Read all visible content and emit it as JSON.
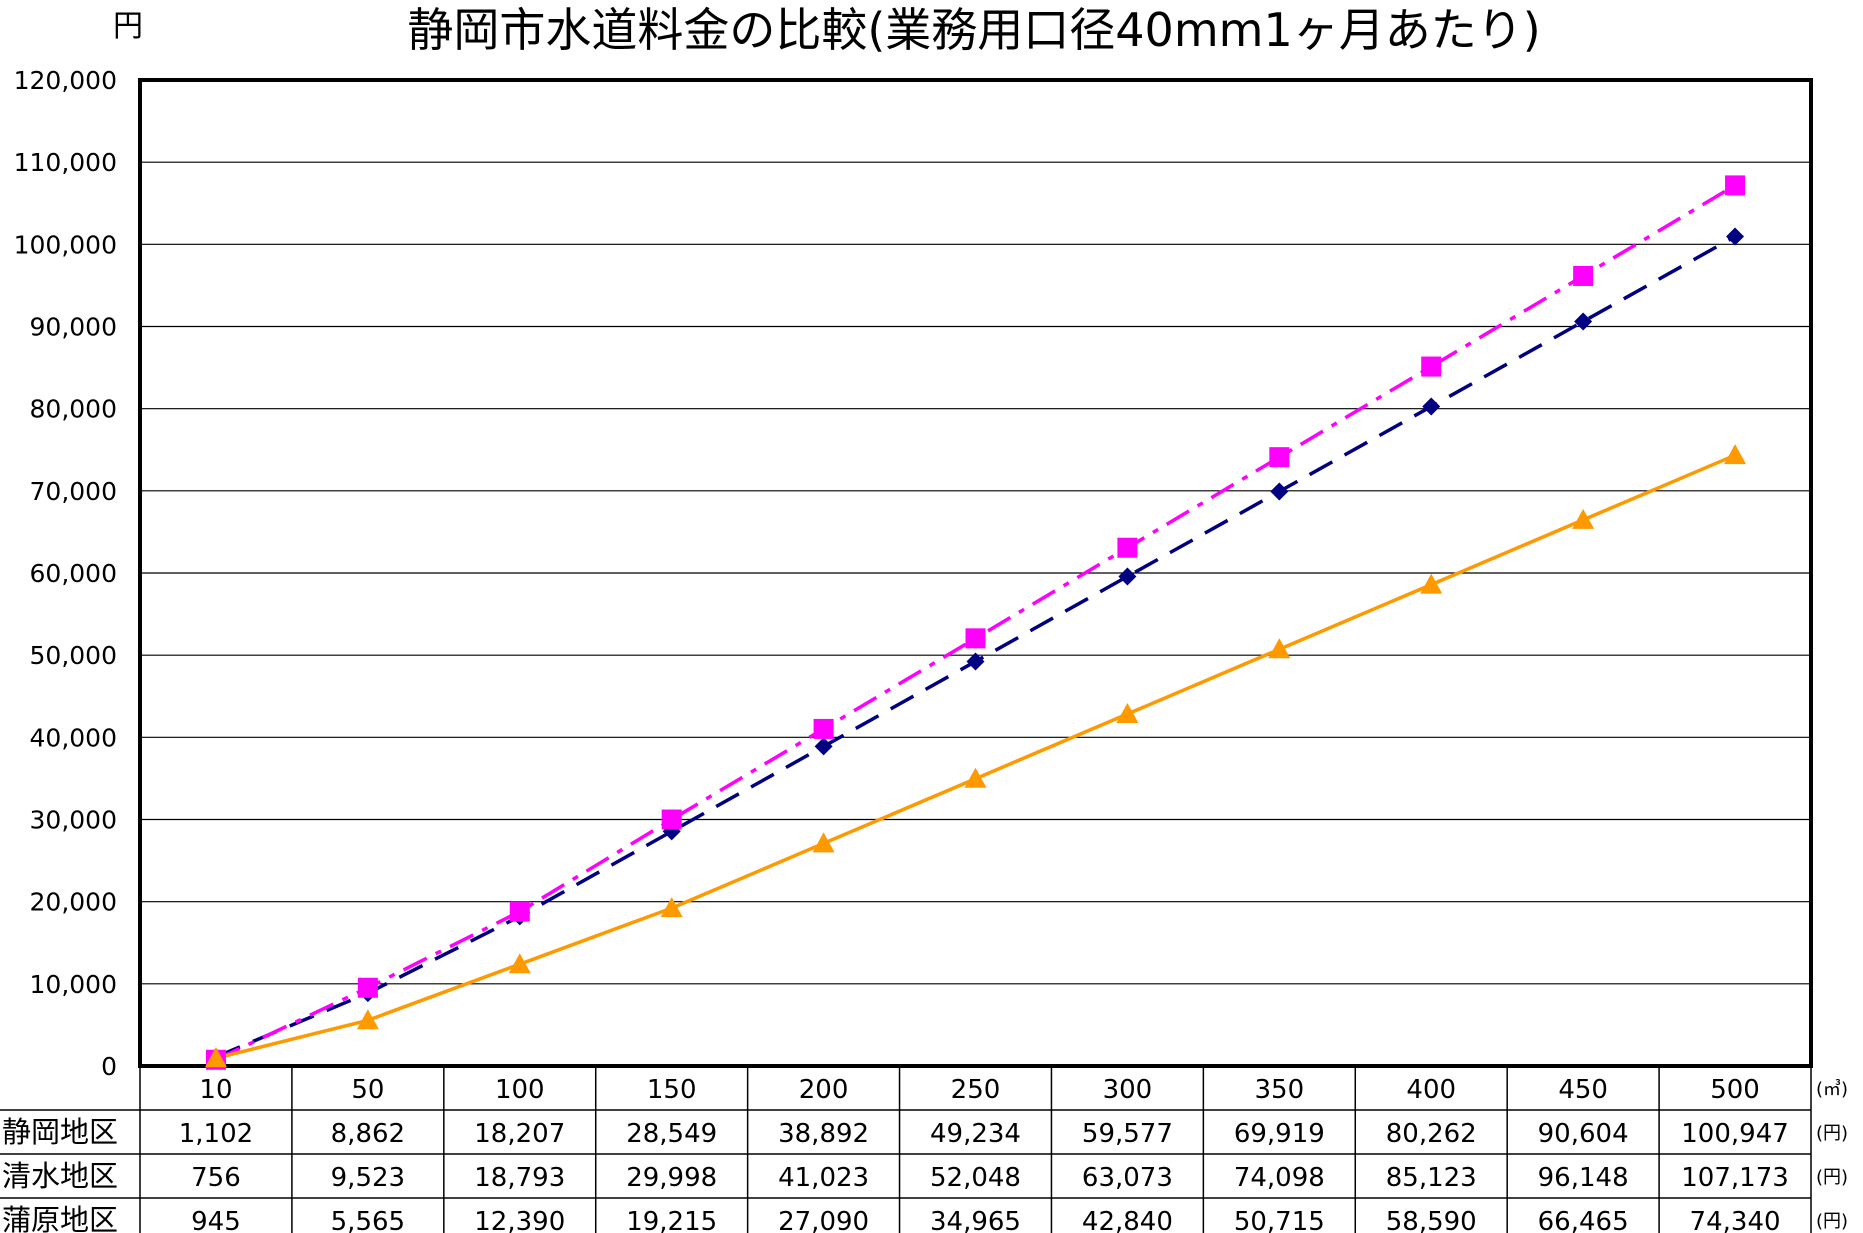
{
  "chart_data": {
    "type": "line",
    "title": "静岡市水道料金の比較(業務用口径40mm1ヶ月あたり)",
    "ylabel": "円",
    "ylim": [
      0,
      120000
    ],
    "yticks": [
      "0",
      "10,000",
      "20,000",
      "30,000",
      "40,000",
      "50,000",
      "60,000",
      "70,000",
      "80,000",
      "90,000",
      "100,000",
      "110,000",
      "120,000"
    ],
    "grid": true,
    "categories": [
      "10",
      "50",
      "100",
      "150",
      "200",
      "250",
      "300",
      "350",
      "400",
      "450",
      "500"
    ],
    "x_unit": "(㎥)",
    "series": [
      {
        "name": "静岡地区",
        "unit": "(円)",
        "color": "#000080",
        "marker": "diamond",
        "line": "dashed",
        "values": [
          1102,
          8862,
          18207,
          28549,
          38892,
          49234,
          59577,
          69919,
          80262,
          90604,
          100947
        ],
        "labels": [
          "1,102",
          "8,862",
          "18,207",
          "28,549",
          "38,892",
          "49,234",
          "59,577",
          "69,919",
          "80,262",
          "90,604",
          "100,947"
        ]
      },
      {
        "name": "清水地区",
        "unit": "(円)",
        "color": "#ff00ff",
        "marker": "square",
        "line": "dash-dot",
        "values": [
          756,
          9523,
          18793,
          29998,
          41023,
          52048,
          63073,
          74098,
          85123,
          96148,
          107173
        ],
        "labels": [
          "756",
          "9,523",
          "18,793",
          "29,998",
          "41,023",
          "52,048",
          "63,073",
          "74,098",
          "85,123",
          "96,148",
          "107,173"
        ]
      },
      {
        "name": "蒲原地区",
        "unit": "(円)",
        "color": "#ff9900",
        "marker": "triangle",
        "line": "solid",
        "values": [
          945,
          5565,
          12390,
          19215,
          27090,
          34965,
          42840,
          50715,
          58590,
          66465,
          74340
        ],
        "labels": [
          "945",
          "5,565",
          "12,390",
          "19,215",
          "27,090",
          "34,965",
          "42,840",
          "50,715",
          "58,590",
          "66,465",
          "74,340"
        ]
      }
    ]
  }
}
